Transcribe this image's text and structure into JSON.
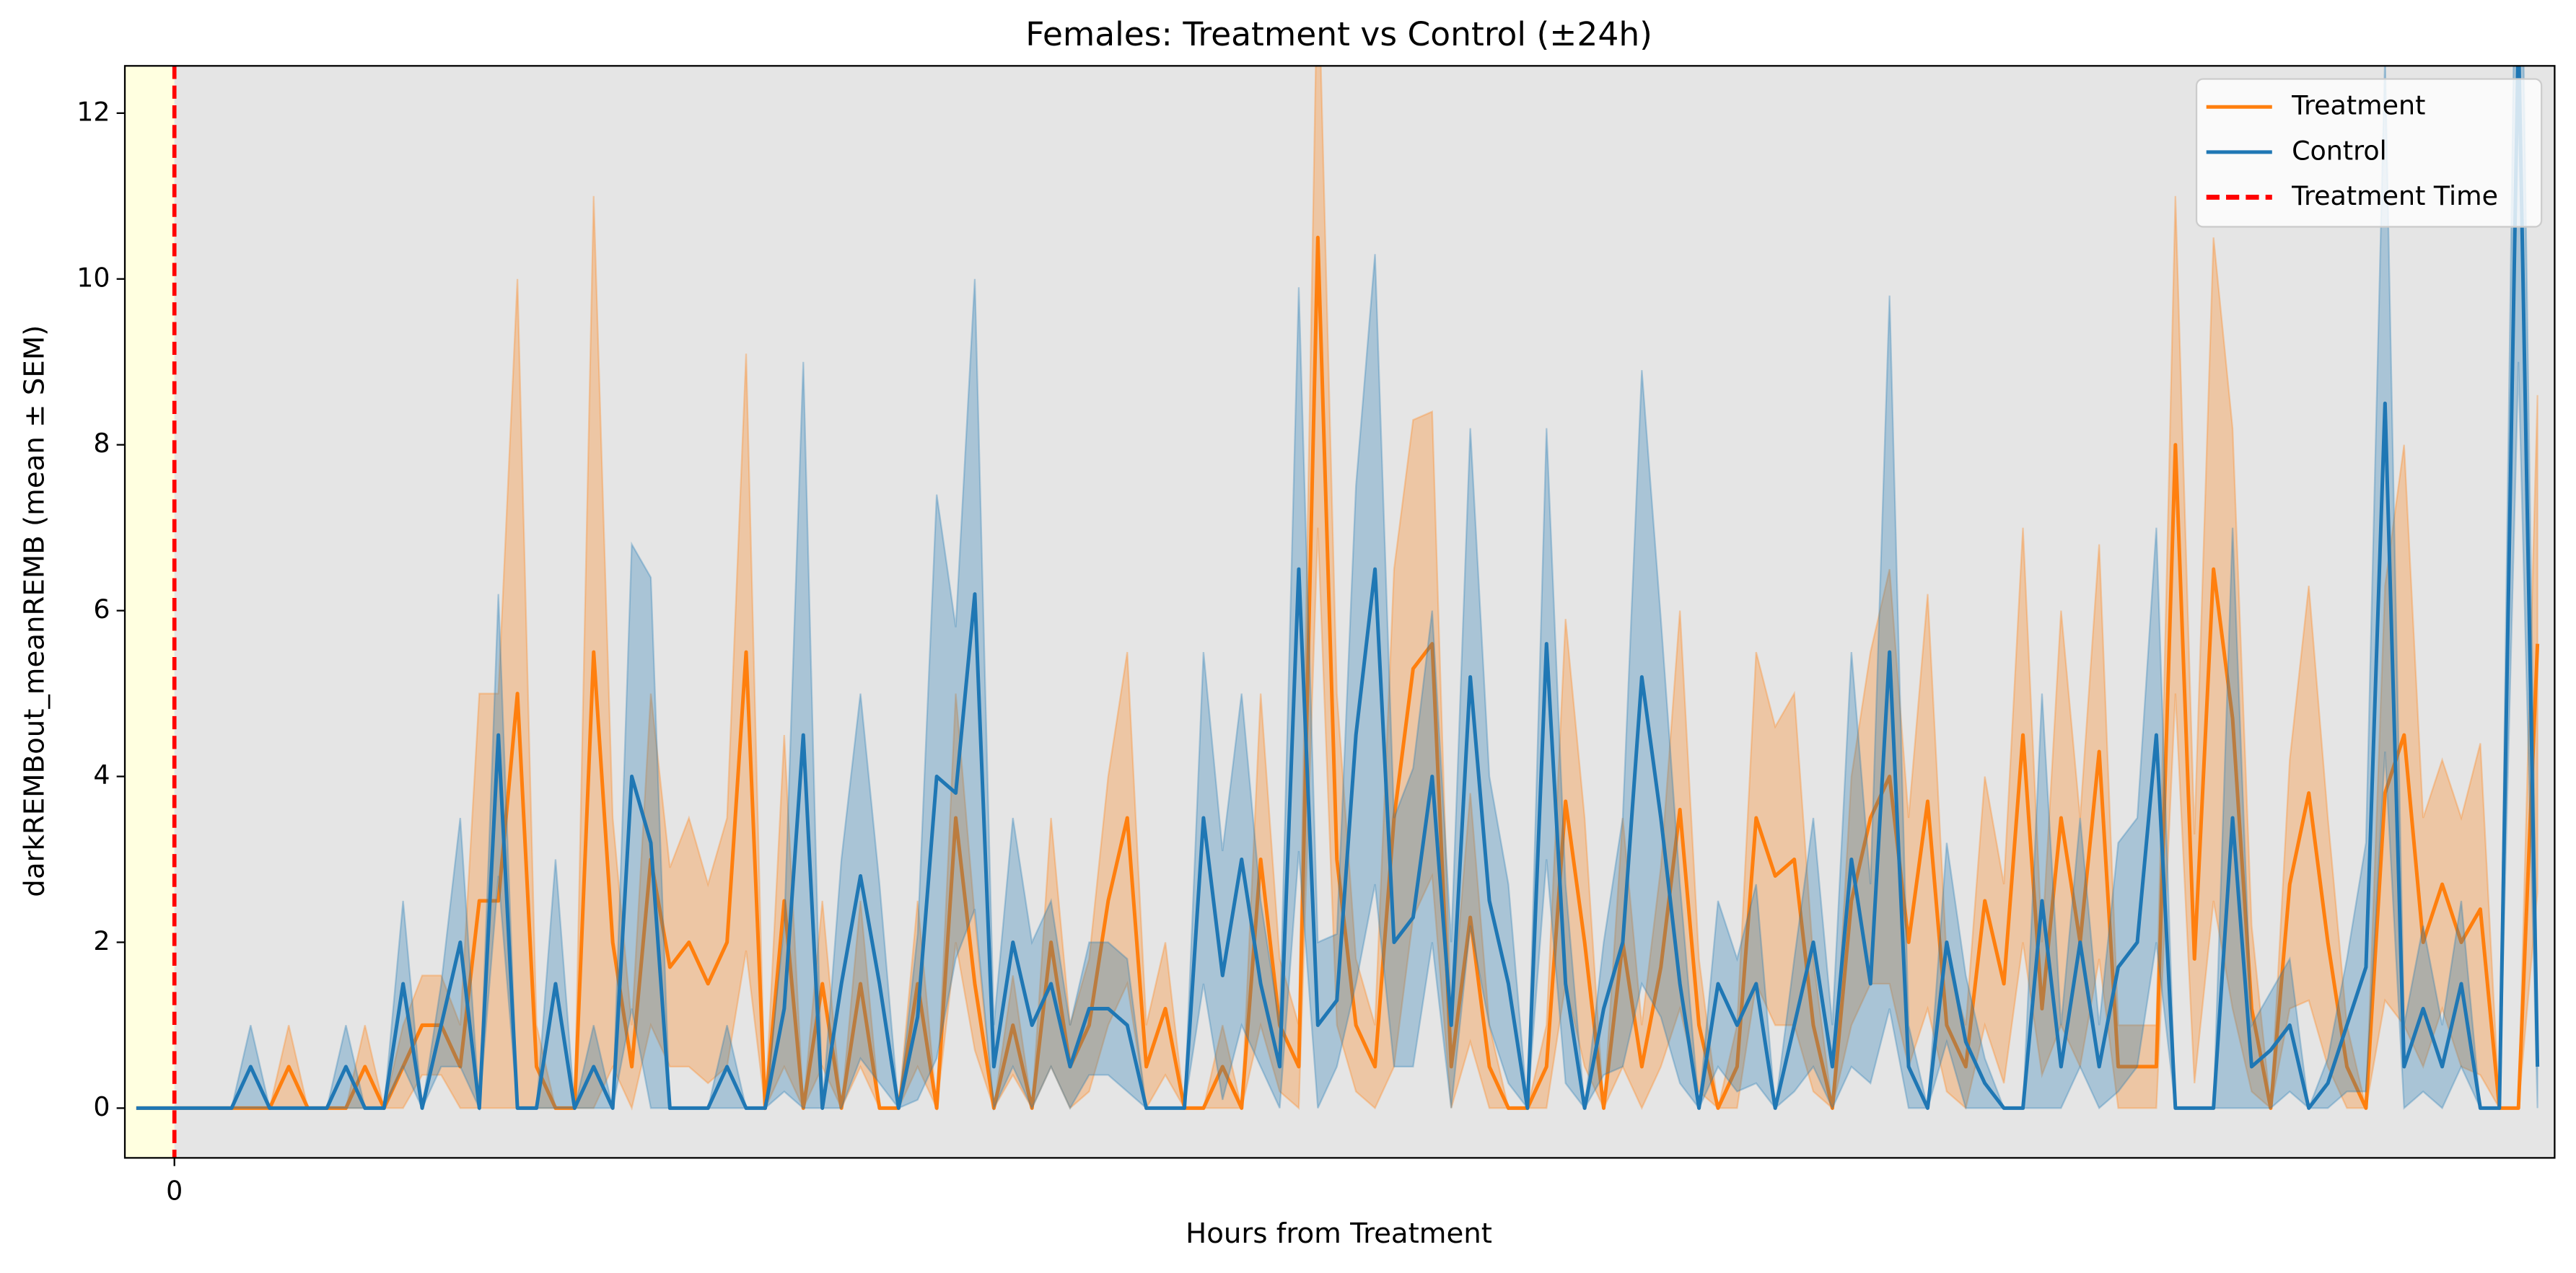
{
  "chart_data": {
    "type": "line",
    "title": "Females: Treatment vs Control (±24h)",
    "x_label": "Hours from Treatment",
    "y_label": "darkREMBout_meanREMB (mean ± SEM)",
    "x": [
      -4,
      -2,
      0,
      2,
      4,
      6,
      8,
      10,
      12,
      14,
      16,
      18,
      20,
      22,
      24,
      26,
      28,
      30,
      32,
      34,
      36,
      38,
      40,
      42,
      44,
      46,
      48,
      50,
      52,
      54,
      56,
      58,
      60,
      62,
      64,
      66,
      68,
      70,
      72,
      74,
      76,
      78,
      80,
      82,
      84,
      86,
      88,
      90,
      92,
      94,
      96,
      98,
      100,
      102,
      104,
      106,
      108,
      110,
      112,
      114,
      116,
      118,
      120,
      122,
      124,
      126,
      128,
      130,
      132,
      134,
      136,
      138,
      140,
      142,
      144,
      146,
      148,
      150,
      152,
      154,
      156,
      158,
      160,
      162,
      164,
      166,
      168,
      170,
      172,
      174,
      176,
      178,
      180,
      182,
      184,
      186,
      188,
      190,
      192,
      194,
      196,
      198,
      200,
      202,
      204,
      206,
      208,
      210,
      212,
      214,
      216,
      218,
      220,
      222,
      224,
      226,
      228,
      230,
      232,
      234,
      236,
      238,
      240,
      242,
      244,
      246,
      248
    ],
    "series": [
      {
        "name": "Treatment",
        "color": "#ff7f0e",
        "values": [
          0,
          0,
          0,
          0,
          0,
          0,
          0,
          0,
          0.5,
          0,
          0,
          0,
          0.5,
          0,
          0.5,
          1,
          1,
          0.5,
          2.5,
          2.5,
          5,
          0.5,
          0,
          0,
          5.5,
          2,
          0.5,
          3,
          1.7,
          2,
          1.5,
          2,
          5.5,
          0,
          2.5,
          0,
          1.5,
          0,
          1.5,
          0,
          0,
          1.5,
          0,
          3.5,
          1.5,
          0,
          1,
          0,
          2,
          0.5,
          1,
          2.5,
          3.5,
          0.5,
          1.2,
          0,
          0,
          0.5,
          0,
          3,
          1,
          0.5,
          10.5,
          3,
          1,
          0.5,
          3.5,
          5.3,
          5.6,
          0.5,
          2.3,
          0.5,
          0,
          0,
          0.5,
          3.7,
          2,
          0,
          2,
          0.5,
          1.7,
          3.6,
          1,
          0,
          0.5,
          3.5,
          2.8,
          3,
          1,
          0,
          2.5,
          3.5,
          4,
          2,
          3.7,
          1,
          0.5,
          2.5,
          1.5,
          4.5,
          1.2,
          3.5,
          2,
          4.3,
          0.5,
          0.5,
          0.5,
          8,
          1.8,
          6.5,
          4.7,
          1.2,
          0,
          2.7,
          3.8,
          2,
          0.5,
          0,
          3.8,
          4.5,
          2,
          2.7,
          2,
          2.4,
          0,
          0,
          5.6
        ],
        "errors": [
          0,
          0,
          0,
          0,
          0,
          0,
          0,
          0,
          0.5,
          0,
          0,
          0,
          0.5,
          0,
          0.5,
          0.6,
          0.6,
          0.5,
          2.5,
          2.5,
          5,
          0.5,
          0,
          0,
          5.5,
          1.5,
          0.5,
          2,
          1.2,
          1.5,
          1.2,
          1.5,
          3.6,
          0,
          2,
          0,
          1,
          0,
          1,
          0,
          0,
          1,
          0,
          1.5,
          0.8,
          0,
          0.6,
          0,
          1.5,
          0.5,
          0.8,
          1.5,
          2,
          0.5,
          0.8,
          0,
          0,
          0.5,
          0,
          2,
          0.8,
          0.5,
          3.5,
          2,
          0.8,
          0.5,
          3,
          3,
          2.8,
          0.5,
          1.5,
          0.5,
          0,
          0,
          0.5,
          2.2,
          1.5,
          0,
          1.5,
          0.5,
          1.2,
          2.4,
          0.8,
          0,
          0.5,
          2,
          1.8,
          2,
          0.8,
          0,
          1.5,
          2,
          2.5,
          1.5,
          2.5,
          0.8,
          0.5,
          1.5,
          1.2,
          2.5,
          0.8,
          2.5,
          1.5,
          2.5,
          0.5,
          0.5,
          0.5,
          3,
          1.5,
          4,
          3.5,
          1,
          0,
          1.5,
          2.5,
          1.5,
          0.5,
          0,
          2.5,
          3.5,
          1.5,
          1.5,
          1.5,
          2,
          0,
          0,
          3
        ]
      },
      {
        "name": "Control",
        "color": "#1f77b4",
        "values": [
          0,
          0,
          0,
          0,
          0,
          0,
          0.5,
          0,
          0,
          0,
          0,
          0.5,
          0,
          0,
          1.5,
          0,
          1,
          2,
          0,
          4.5,
          0,
          0,
          1.5,
          0,
          0.5,
          0,
          4,
          3.2,
          0,
          0,
          0,
          0.5,
          0,
          0,
          1.2,
          4.5,
          0,
          1.5,
          2.8,
          1.5,
          0,
          1.1,
          4,
          3.8,
          6.2,
          0.5,
          2,
          1,
          1.5,
          0.5,
          1.2,
          1.2,
          1,
          0,
          0,
          0,
          3.5,
          1.6,
          3,
          1.5,
          0.5,
          6.5,
          1,
          1.3,
          4.5,
          6.5,
          2,
          2.3,
          4,
          1,
          5.2,
          2.5,
          1.5,
          0,
          5.6,
          1.5,
          0,
          1.2,
          2,
          5.2,
          3.5,
          1.5,
          0,
          1.5,
          1,
          1.5,
          0,
          1,
          2,
          0.5,
          3,
          1.5,
          5.5,
          0.5,
          0,
          2,
          0.8,
          0.3,
          0,
          0,
          2.5,
          0.5,
          2,
          0.5,
          1.7,
          2,
          4.5,
          0,
          0,
          0,
          3.5,
          0.5,
          0.7,
          1,
          0,
          0.3,
          1,
          1.7,
          8.5,
          0.5,
          1.2,
          0.5,
          1.5,
          0,
          0,
          13,
          0.5
        ],
        "errors": [
          0,
          0,
          0,
          0,
          0,
          0,
          0.5,
          0,
          0,
          0,
          0,
          0.5,
          0,
          0,
          1,
          0,
          0.5,
          1.5,
          0,
          1.7,
          0,
          0,
          1.5,
          0,
          0.5,
          0,
          2.8,
          3.2,
          0,
          0,
          0,
          0.5,
          0,
          0,
          1,
          4.5,
          0,
          1.5,
          2.2,
          1.2,
          0,
          1,
          3.4,
          2,
          3.8,
          0.5,
          1.5,
          1,
          1,
          0.5,
          0.8,
          0.8,
          0.8,
          0,
          0,
          0,
          2,
          1.5,
          2,
          1,
          0.5,
          3.4,
          1,
          0.8,
          3,
          3.8,
          1.5,
          1.8,
          2,
          1,
          3,
          1.5,
          1.2,
          0,
          2.6,
          1.2,
          0,
          0.8,
          1.5,
          3.7,
          2.4,
          1.2,
          0,
          1,
          0.8,
          1.2,
          0,
          0.8,
          1.5,
          0.5,
          2.5,
          1.2,
          4.3,
          0.5,
          0,
          1.2,
          0.8,
          0.3,
          0,
          0,
          2.5,
          0.5,
          1.5,
          0.5,
          1.5,
          1.5,
          2.5,
          0,
          0,
          0,
          3.5,
          0.5,
          0.7,
          0.8,
          0,
          0.3,
          0.8,
          1.5,
          4.2,
          0.5,
          1,
          0.5,
          1,
          0,
          0,
          4,
          0.5
        ]
      }
    ],
    "vline": {
      "name": "Treatment Time",
      "x": 0,
      "color": "#ff0000"
    },
    "background": "#e5e5e5",
    "pre_color": "#ffffe0",
    "xlim": [
      -5.2,
      249.8
    ],
    "xticks": [
      0
    ],
    "ylim": [
      -0.6,
      12.57
    ],
    "yticks": [
      0,
      2,
      4,
      6,
      8,
      10,
      12
    ],
    "legend": "upper right"
  }
}
